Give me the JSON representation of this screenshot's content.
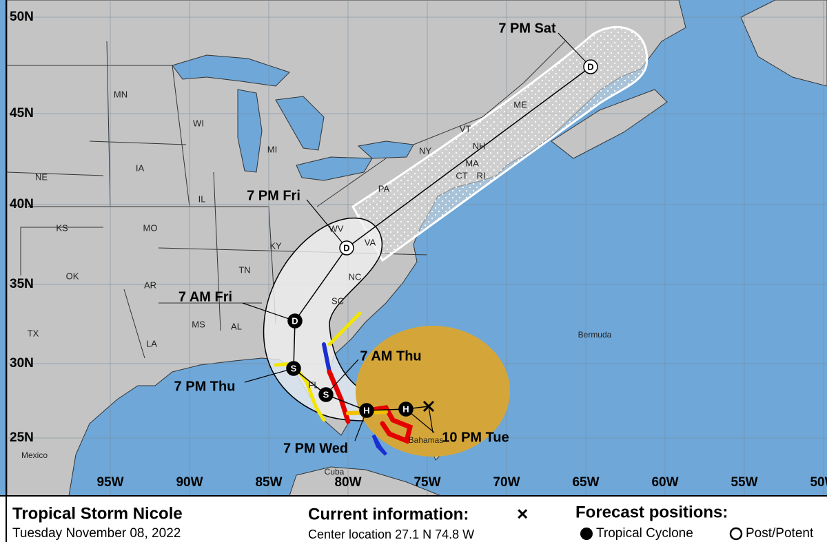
{
  "map": {
    "latitude_labels": [
      "50N",
      "45N",
      "40N",
      "35N",
      "30N",
      "25N"
    ],
    "longitude_labels": [
      "95W",
      "90W",
      "85W",
      "80W",
      "75W",
      "70W",
      "65W",
      "60W",
      "55W",
      "50W"
    ],
    "state_labels": [
      "MN",
      "WI",
      "MI",
      "IA",
      "NE",
      "IL",
      "MO",
      "KS",
      "KY",
      "TN",
      "OK",
      "AR",
      "MS",
      "AL",
      "LA",
      "TX",
      "SC",
      "NC",
      "VA",
      "WV",
      "PA",
      "NY",
      "VT",
      "NH",
      "MA",
      "CT",
      "RI",
      "ME",
      "FL"
    ],
    "place_labels": [
      "Bermuda",
      "Mexico",
      "Cuba",
      "Bahamas"
    ],
    "forecast_labels": [
      "7 PM Sat",
      "7 PM Fri",
      "7 AM Fri",
      "7 PM Thu",
      "7 AM Thu",
      "7 PM Wed",
      "10 PM Tue"
    ],
    "forecast_markers": [
      "D",
      "D",
      "D",
      "S",
      "S",
      "H",
      "H"
    ]
  },
  "footer": {
    "storm_name": "Tropical Storm Nicole",
    "date": "Tuesday November 08, 2022",
    "current_heading": "Current information:",
    "current_symbol": "×",
    "center_location": "Center location 27.1 N 74.8 W",
    "forecast_heading": "Forecast positions:",
    "legend": [
      "Tropical Cyclone",
      "Post/Potent"
    ]
  }
}
